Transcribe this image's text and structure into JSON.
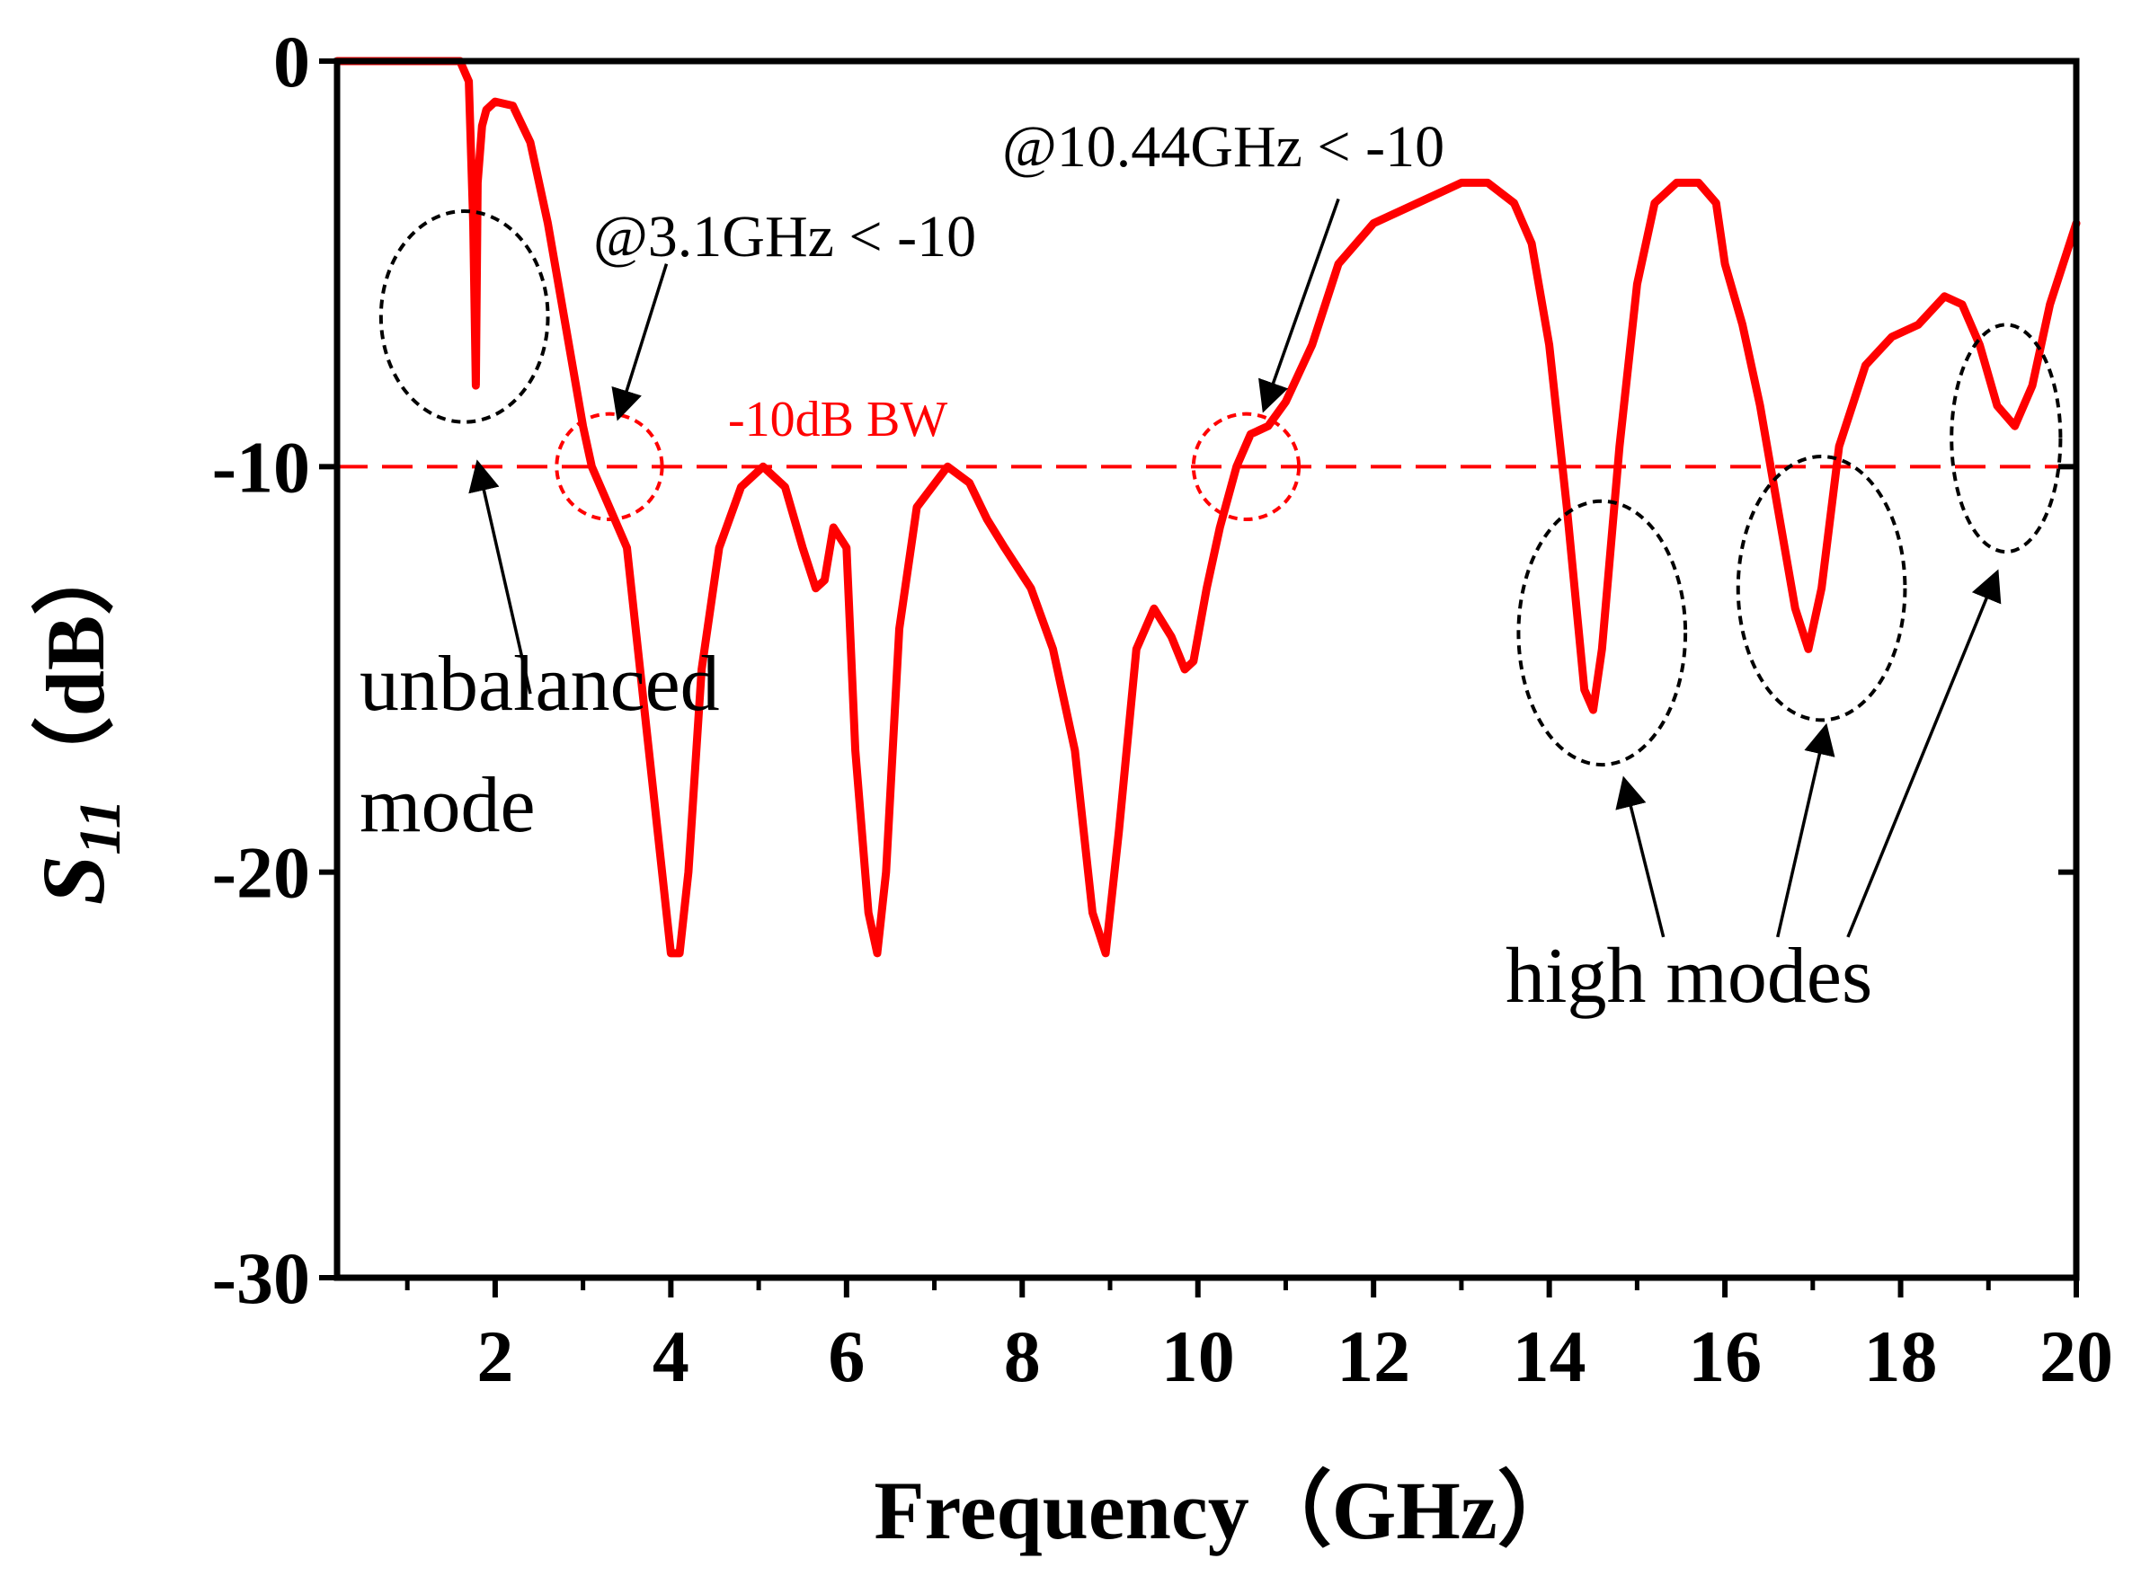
{
  "chart_data": {
    "type": "line",
    "xlabel": "Frequency（GHz）",
    "ylabel_main": "S",
    "ylabel_sub": "11",
    "ylabel_unit": "（dB）",
    "xlim": [
      0.2,
      20
    ],
    "ylim": [
      -30,
      0
    ],
    "x_ticks": [
      2,
      4,
      6,
      8,
      10,
      12,
      14,
      16,
      18,
      20
    ],
    "x_tick_labels": [
      "2",
      "4",
      "6",
      "8",
      "10",
      "12",
      "14",
      "16",
      "18",
      "20"
    ],
    "y_ticks": [
      0,
      -10,
      -20,
      -30
    ],
    "y_tick_labels": [
      "0",
      "-10",
      "-20",
      "-30"
    ],
    "grid": false,
    "series": [
      {
        "name": "S11",
        "color": "#ff0000",
        "x": [
          0.2,
          1.0,
          1.6,
          1.7,
          1.75,
          1.78,
          1.8,
          1.85,
          1.9,
          2.0,
          2.2,
          2.4,
          2.6,
          2.8,
          3.0,
          3.1,
          3.3,
          3.5,
          3.7,
          3.85,
          4.0,
          4.1,
          4.2,
          4.35,
          4.55,
          4.8,
          5.05,
          5.3,
          5.5,
          5.65,
          5.75,
          5.85,
          6.0,
          6.1,
          6.25,
          6.35,
          6.45,
          6.6,
          6.8,
          7.15,
          7.4,
          7.6,
          7.8,
          8.1,
          8.35,
          8.6,
          8.8,
          8.95,
          9.1,
          9.3,
          9.5,
          9.7,
          9.85,
          9.95,
          10.1,
          10.25,
          10.44,
          10.6,
          10.8,
          11.0,
          11.3,
          11.6,
          12.0,
          12.5,
          13.0,
          13.3,
          13.6,
          13.8,
          14.0,
          14.2,
          14.4,
          14.5,
          14.6,
          14.8,
          15.0,
          15.2,
          15.45,
          15.7,
          15.9,
          16.0,
          16.2,
          16.4,
          16.6,
          16.8,
          16.95,
          17.1,
          17.3,
          17.6,
          17.9,
          18.2,
          18.5,
          18.7,
          18.9,
          19.1,
          19.3,
          19.5,
          19.7,
          20.0
        ],
        "y": [
          0,
          0,
          0,
          -0.5,
          -4,
          -8,
          -3,
          -1.6,
          -1.2,
          -1,
          -1.1,
          -2,
          -4,
          -6.5,
          -9,
          -10,
          -11,
          -12,
          -16,
          -19,
          -22,
          -22,
          -20,
          -15,
          -12,
          -10.5,
          -10,
          -10.5,
          -12,
          -13,
          -12.8,
          -11.5,
          -12,
          -17,
          -21,
          -22,
          -20,
          -14,
          -11,
          -10,
          -10.4,
          -11.3,
          -12,
          -13,
          -14.5,
          -17,
          -21,
          -22,
          -19,
          -14.5,
          -13.5,
          -14.2,
          -15,
          -14.8,
          -13,
          -11.5,
          -10,
          -9.2,
          -9,
          -8.4,
          -7,
          -5,
          -4,
          -3.5,
          -3,
          -3,
          -3.5,
          -4.5,
          -7,
          -11,
          -15.5,
          -16,
          -14.5,
          -9.5,
          -5.5,
          -3.5,
          -3,
          -3,
          -3.5,
          -5,
          -6.5,
          -8.5,
          -11,
          -13.5,
          -14.5,
          -13,
          -9.5,
          -7.5,
          -6.8,
          -6.5,
          -5.8,
          -6,
          -7,
          -8.5,
          -9,
          -8,
          -6,
          -4
        ]
      }
    ],
    "reference_line": {
      "y": -10,
      "label": "-10dB BW",
      "color": "#ff0000",
      "style": "dashed"
    },
    "annotations": {
      "ann_3_1": "@3.1GHz < -10",
      "ann_10_44": "@10.44GHz < -10",
      "unbalanced_1": "unbalanced",
      "unbalanced_2": "mode",
      "high_modes": "high modes"
    },
    "highlight_circles": [
      {
        "name": "unbalanced-mode-circle",
        "x": 1.65,
        "y": -6.3,
        "rx_data": 0.95,
        "ry_data": 2.6,
        "color": "#000000"
      },
      {
        "name": "circle-3-1ghz",
        "x": 3.3,
        "y": -10,
        "rx_data": 0.6,
        "ry_data": 1.3,
        "color": "#ff0000"
      },
      {
        "name": "circle-10-44ghz",
        "x": 10.55,
        "y": -10,
        "rx_data": 0.6,
        "ry_data": 1.3,
        "color": "#ff0000"
      },
      {
        "name": "high-mode-circle-14",
        "x": 14.6,
        "y": -14.1,
        "rx_data": 0.95,
        "ry_data": 3.25,
        "color": "#000000"
      },
      {
        "name": "high-mode-circle-17",
        "x": 17.1,
        "y": -13,
        "rx_data": 0.95,
        "ry_data": 3.25,
        "color": "#000000"
      },
      {
        "name": "high-mode-circle-19",
        "x": 19.2,
        "y": -9.3,
        "rx_data": 0.62,
        "ry_data": 2.8,
        "color": "#000000"
      }
    ],
    "arrows": [
      {
        "name": "arrow-unbalanced",
        "from": [
          2.4,
          -15.6
        ],
        "to": [
          1.8,
          -9.9
        ]
      },
      {
        "name": "arrow-3-1ghz",
        "from": [
          3.95,
          -5.0
        ],
        "to": [
          3.4,
          -8.8
        ]
      },
      {
        "name": "arrow-10-44ghz",
        "from": [
          11.6,
          -3.4
        ],
        "to": [
          10.75,
          -8.6
        ]
      },
      {
        "name": "arrow-high-14",
        "from": [
          15.3,
          -21.6
        ],
        "to": [
          14.85,
          -17.7
        ]
      },
      {
        "name": "arrow-high-17",
        "from": [
          16.6,
          -21.6
        ],
        "to": [
          17.15,
          -16.4
        ]
      },
      {
        "name": "arrow-high-19",
        "from": [
          17.4,
          -21.6
        ],
        "to": [
          19.1,
          -12.6
        ]
      }
    ]
  }
}
